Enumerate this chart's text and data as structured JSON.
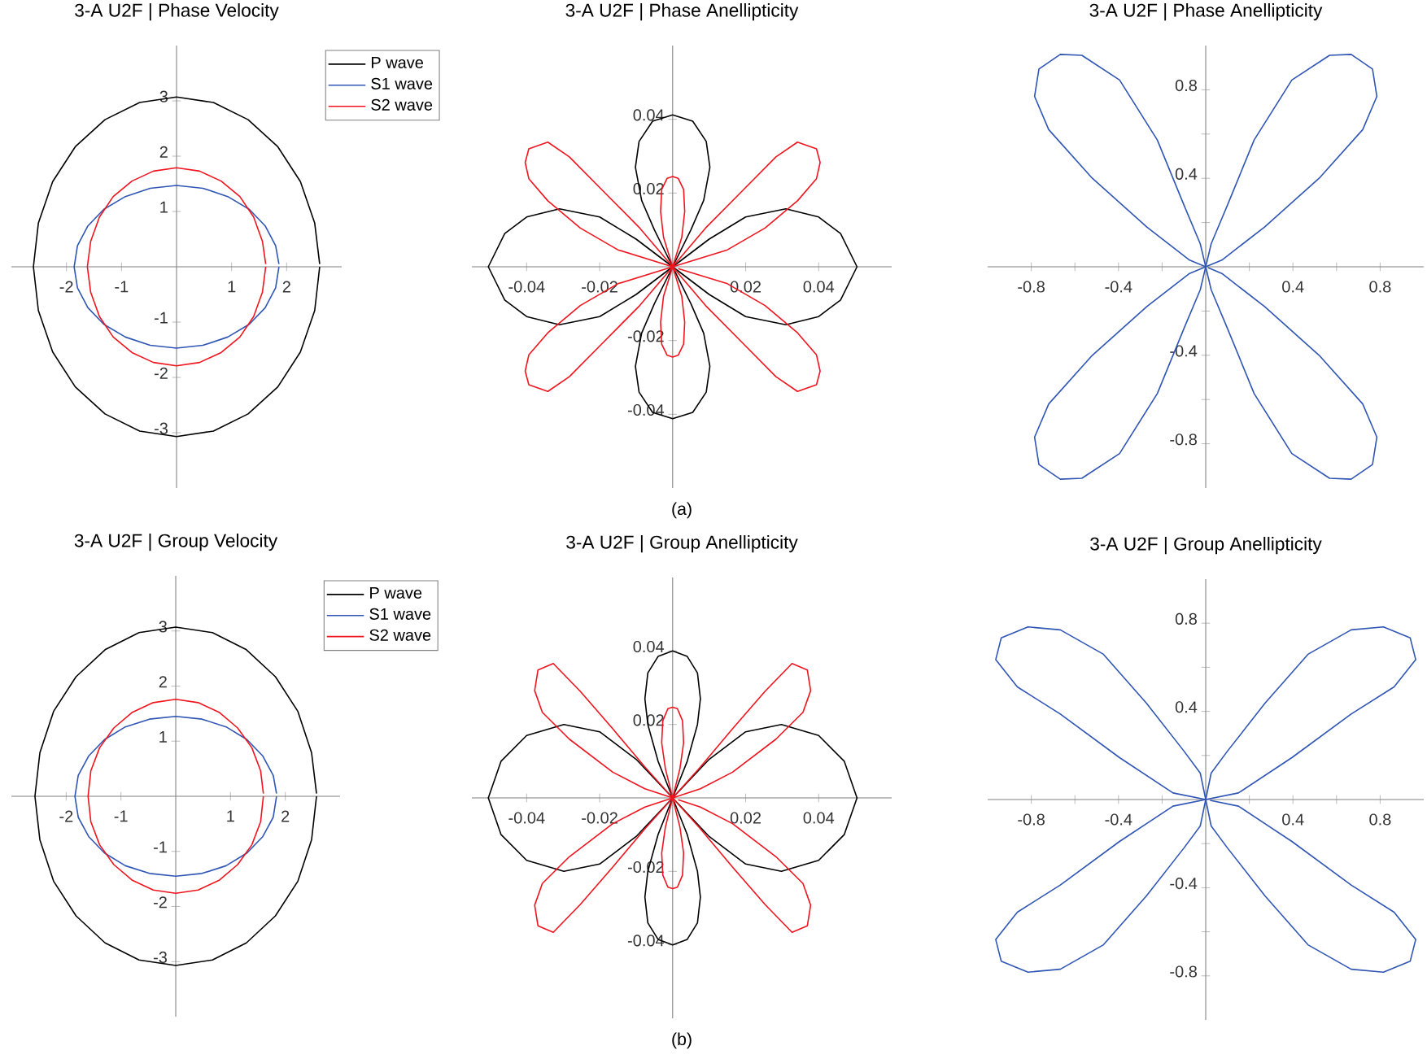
{
  "chart_data": [
    {
      "type": "line",
      "title": "3-A U2F | Phase Velocity",
      "xlim": [
        -3,
        3
      ],
      "ylim": [
        -4,
        4
      ],
      "xticks": [
        -2,
        -1,
        1,
        2
      ],
      "yticks": [
        -3,
        -2,
        -1,
        1,
        2,
        3
      ],
      "legend": "top right",
      "series": [
        {
          "name": "P wave",
          "color": "#000000",
          "x": [
            2.6,
            2.51,
            2.25,
            1.84,
            1.3,
            0.67,
            0,
            -0.67,
            -1.3,
            -1.84,
            -2.25,
            -2.51,
            -2.6,
            -2.51,
            -2.25,
            -1.84,
            -1.3,
            -0.67,
            0,
            0.67,
            1.3,
            1.84,
            2.25,
            2.51,
            2.6
          ],
          "values": [
            0.05,
            0.79,
            1.54,
            2.17,
            2.66,
            2.97,
            3.07,
            2.97,
            2.66,
            2.17,
            1.54,
            0.79,
            0,
            -0.79,
            -1.54,
            -2.17,
            -2.66,
            -2.97,
            -3.07,
            -2.97,
            -2.66,
            -2.17,
            -1.54,
            -0.79,
            0
          ]
        },
        {
          "name": "S1 wave",
          "color": "#2f55b5",
          "x": [
            1.86,
            1.8,
            1.61,
            1.32,
            0.93,
            0.48,
            0,
            -0.48,
            -0.93,
            -1.32,
            -1.61,
            -1.8,
            -1.86,
            -1.8,
            -1.61,
            -1.32,
            -0.93,
            -0.48,
            0,
            0.48,
            0.93,
            1.32,
            1.61,
            1.8,
            1.86
          ],
          "values": [
            0.05,
            0.38,
            0.74,
            1.04,
            1.27,
            1.42,
            1.47,
            1.42,
            1.27,
            1.04,
            0.74,
            0.38,
            0,
            -0.38,
            -0.74,
            -1.04,
            -1.27,
            -1.42,
            -1.47,
            -1.42,
            -1.27,
            -1.04,
            -0.74,
            -0.38,
            0
          ]
        },
        {
          "name": "S2 wave",
          "color": "#f0141e",
          "x": [
            1.62,
            1.56,
            1.4,
            1.15,
            0.81,
            0.42,
            0,
            -0.42,
            -0.81,
            -1.15,
            -1.4,
            -1.56,
            -1.62,
            -1.56,
            -1.4,
            -1.15,
            -0.81,
            -0.42,
            0,
            0.42,
            0.81,
            1.15,
            1.4,
            1.56,
            1.62
          ],
          "values": [
            0.05,
            0.46,
            0.9,
            1.27,
            1.55,
            1.73,
            1.79,
            1.73,
            1.55,
            1.27,
            0.9,
            0.46,
            0,
            -0.46,
            -0.9,
            -1.27,
            -1.55,
            -1.73,
            -1.79,
            -1.73,
            -1.55,
            -1.27,
            -0.9,
            -0.46,
            0
          ]
        }
      ]
    },
    {
      "type": "line",
      "title": "3-A U2F | Phase Anellipticity",
      "xlim": [
        -0.055,
        0.06
      ],
      "ylim": [
        -0.06,
        0.06
      ],
      "xticks": [
        -0.04,
        -0.02,
        0.02,
        0.04
      ],
      "yticks": [
        -0.04,
        -0.02,
        0.02,
        0.04
      ],
      "annotations": [
        "(a)"
      ],
      "series": [
        {
          "color": "#000000",
          "x": [
            0,
            0.01,
            0.02,
            0.031,
            0.04,
            0.046,
            0.0505,
            0.046,
            0.04,
            0.031,
            0.02,
            0.01,
            0,
            0.005,
            0.0085,
            0.0102,
            0.0092,
            0.0055,
            0,
            -0.0055,
            -0.0092,
            -0.0102,
            -0.0085,
            -0.005,
            0,
            -0.01,
            -0.02,
            -0.031,
            -0.04,
            -0.046,
            -0.0505,
            -0.046,
            -0.04,
            -0.031,
            -0.02,
            -0.01,
            0,
            -0.005,
            -0.0085,
            -0.0102,
            -0.0092,
            -0.0055,
            0,
            0.0055,
            0.0092,
            0.0102,
            0.0085,
            0.005,
            0.0005
          ],
          "values": [
            0,
            -0.0075,
            -0.0135,
            -0.0157,
            -0.0135,
            -0.009,
            0,
            0.009,
            0.0135,
            0.0157,
            0.0135,
            0.0075,
            0,
            0.01,
            0.018,
            0.027,
            0.034,
            0.0395,
            0.0412,
            0.0395,
            0.034,
            0.027,
            0.018,
            0.01,
            0,
            0.0075,
            0.0135,
            0.0157,
            0.0135,
            0.009,
            0,
            -0.009,
            -0.0135,
            -0.0157,
            -0.0135,
            -0.0075,
            0,
            -0.01,
            -0.018,
            -0.027,
            -0.034,
            -0.0395,
            -0.0412,
            -0.0395,
            -0.034,
            -0.027,
            -0.018,
            -0.01,
            -0.001
          ]
        },
        {
          "color": "#f0141e",
          "x": [
            0,
            0.015,
            0.0253,
            0.0342,
            0.0394,
            0.0404,
            0.0394,
            0.0342,
            0.0283,
            0.0194,
            0.009,
            0,
            0.0025,
            0.0033,
            0.003,
            0.0015,
            0,
            -0.0015,
            -0.003,
            -0.0033,
            -0.0025,
            0,
            -0.009,
            -0.0194,
            -0.0283,
            -0.0342,
            -0.0394,
            -0.0404,
            -0.0394,
            -0.0342,
            -0.0253,
            -0.015,
            0,
            -0.015,
            -0.0253,
            -0.0342,
            -0.0394,
            -0.0404,
            -0.0394,
            -0.0342,
            -0.0283,
            -0.0194,
            -0.009,
            0,
            -0.0025,
            -0.0033,
            -0.003,
            -0.0015,
            0,
            0.0015,
            0.003,
            0.0033,
            0.0025,
            0,
            0.009,
            0.0194,
            0.0283,
            0.0342,
            0.0394,
            0.0404,
            0.0394,
            0.0342,
            0.0253,
            0.015,
            0.0015
          ],
          "values": [
            0,
            0.0046,
            0.0105,
            0.0179,
            0.0239,
            0.0283,
            0.032,
            0.0338,
            0.0298,
            0.0209,
            0.0105,
            0,
            0.008,
            0.015,
            0.021,
            0.024,
            0.0245,
            0.024,
            0.021,
            0.015,
            0.008,
            0,
            0.0105,
            0.0209,
            0.0298,
            0.0338,
            0.032,
            0.0283,
            0.0239,
            0.0179,
            0.0105,
            0.0046,
            0,
            -0.0046,
            -0.0105,
            -0.0179,
            -0.0239,
            -0.0283,
            -0.032,
            -0.0338,
            -0.0298,
            -0.0209,
            -0.0105,
            0,
            -0.008,
            -0.015,
            -0.021,
            -0.024,
            -0.0245,
            -0.024,
            -0.021,
            -0.015,
            -0.008,
            0,
            -0.0105,
            -0.0209,
            -0.0298,
            -0.0338,
            -0.032,
            -0.0283,
            -0.0239,
            -0.0179,
            -0.0105,
            -0.0046,
            -0.0005
          ]
        }
      ]
    },
    {
      "type": "line",
      "title": "3-A U2F | Phase Anellipticity",
      "xlim": [
        -1,
        1
      ],
      "ylim": [
        -1,
        1
      ],
      "xticks": [
        -0.8,
        {
          "value": -0.6,
          "label": null
        },
        -0.4,
        {
          "value": -0.2,
          "label": null
        },
        {
          "value": 0.2,
          "label": null
        },
        0.4,
        {
          "value": 0.6,
          "label": null
        },
        0.8
      ],
      "yticks": [
        -0.8,
        {
          "value": -0.6,
          "label": null
        },
        -0.4,
        {
          "value": -0.2,
          "label": null
        },
        {
          "value": 0.2,
          "label": null
        },
        0.4,
        {
          "value": 0.6,
          "label": null
        },
        0.8
      ],
      "series": [
        {
          "color": "#2f55b5",
          "x": [
            0,
            0.074,
            0.27,
            0.52,
            0.72,
            0.785,
            0.765,
            0.667,
            0.568,
            0.395,
            0.222,
            0.099,
            0.025,
            0,
            -0.025,
            -0.099,
            -0.222,
            -0.395,
            -0.568,
            -0.667,
            -0.765,
            -0.785,
            -0.72,
            -0.52,
            -0.27,
            -0.074,
            0,
            -0.074,
            -0.27,
            -0.52,
            -0.72,
            -0.785,
            -0.765,
            -0.667,
            -0.568,
            -0.395,
            -0.222,
            -0.099,
            -0.025,
            0,
            0.025,
            0.099,
            0.222,
            0.395,
            0.568,
            0.667,
            0.765,
            0.785,
            0.72,
            0.52,
            0.27,
            0.074,
            0.01
          ],
          "values": [
            0,
            0.03,
            0.18,
            0.4,
            0.62,
            0.77,
            0.894,
            0.96,
            0.956,
            0.844,
            0.573,
            0.277,
            0.104,
            0,
            0.104,
            0.277,
            0.573,
            0.844,
            0.956,
            0.96,
            0.894,
            0.77,
            0.62,
            0.4,
            0.18,
            0.03,
            0,
            -0.03,
            -0.18,
            -0.4,
            -0.62,
            -0.77,
            -0.894,
            -0.96,
            -0.956,
            -0.844,
            -0.573,
            -0.277,
            -0.104,
            0,
            -0.104,
            -0.277,
            -0.573,
            -0.844,
            -0.956,
            -0.96,
            -0.894,
            -0.77,
            -0.62,
            -0.4,
            -0.18,
            -0.03,
            -0.004
          ]
        }
      ]
    },
    {
      "type": "line",
      "title": "3-A U2F | Group Velocity",
      "xlim": [
        -3,
        3
      ],
      "ylim": [
        -4,
        4
      ],
      "xticks": [
        -2,
        -1,
        1,
        2
      ],
      "yticks": [
        -3,
        -2,
        -1,
        1,
        2,
        3
      ],
      "legend": "top right",
      "series": [
        {
          "name": "P wave",
          "color": "#000000",
          "x": [
            2.57,
            2.48,
            2.23,
            1.82,
            1.29,
            0.67,
            0,
            -0.67,
            -1.29,
            -1.82,
            -2.23,
            -2.48,
            -2.57,
            -2.48,
            -2.23,
            -1.82,
            -1.29,
            -0.67,
            0,
            0.67,
            1.29,
            1.82,
            2.23,
            2.48,
            2.57
          ],
          "values": [
            0.05,
            0.79,
            1.54,
            2.17,
            2.66,
            2.97,
            3.07,
            2.97,
            2.66,
            2.17,
            1.54,
            0.79,
            0,
            -0.79,
            -1.54,
            -2.17,
            -2.66,
            -2.97,
            -3.07,
            -2.97,
            -2.66,
            -2.17,
            -1.54,
            -0.79,
            0
          ]
        },
        {
          "name": "S1 wave",
          "color": "#2f55b5",
          "x": [
            1.84,
            1.78,
            1.59,
            1.3,
            0.92,
            0.48,
            0,
            -0.48,
            -0.92,
            -1.3,
            -1.59,
            -1.78,
            -1.84,
            -1.78,
            -1.59,
            -1.3,
            -0.92,
            -0.48,
            0,
            0.48,
            0.92,
            1.3,
            1.59,
            1.78,
            1.84
          ],
          "values": [
            0.05,
            0.38,
            0.73,
            1.03,
            1.26,
            1.4,
            1.45,
            1.4,
            1.26,
            1.03,
            0.73,
            0.38,
            0,
            -0.38,
            -0.73,
            -1.03,
            -1.26,
            -1.4,
            -1.45,
            -1.4,
            -1.26,
            -1.03,
            -0.73,
            -0.38,
            0
          ]
        },
        {
          "name": "S2 wave",
          "color": "#f0141e",
          "x": [
            1.6,
            1.55,
            1.39,
            1.13,
            0.8,
            0.41,
            0,
            -0.41,
            -0.8,
            -1.13,
            -1.39,
            -1.55,
            -1.6,
            -1.55,
            -1.39,
            -1.13,
            -0.8,
            -0.41,
            0,
            0.41,
            0.8,
            1.13,
            1.39,
            1.55,
            1.6
          ],
          "values": [
            0.05,
            0.46,
            0.88,
            1.24,
            1.52,
            1.7,
            1.76,
            1.7,
            1.52,
            1.24,
            0.88,
            0.46,
            0,
            -0.46,
            -0.88,
            -1.24,
            -1.52,
            -1.7,
            -1.76,
            -1.7,
            -1.52,
            -1.24,
            -0.88,
            -0.46,
            0
          ]
        }
      ]
    },
    {
      "type": "line",
      "title": "3-A U2F | Group Anellipticity",
      "xlim": [
        -0.055,
        0.06
      ],
      "ylim": [
        -0.06,
        0.06
      ],
      "xticks": [
        -0.04,
        -0.02,
        0.02,
        0.04
      ],
      "yticks": [
        -0.04,
        -0.02,
        0.02,
        0.04
      ],
      "annotations": [
        "(b)"
      ],
      "series": [
        {
          "color": "#000000",
          "x": [
            0,
            0.01,
            0.02,
            0.0298,
            0.04,
            0.047,
            0.0505,
            0.047,
            0.04,
            0.0298,
            0.02,
            0.01,
            0,
            0.004,
            0.0068,
            0.0076,
            0.0068,
            0.004,
            0,
            -0.004,
            -0.0068,
            -0.0076,
            -0.0068,
            -0.004,
            0,
            -0.01,
            -0.02,
            -0.0298,
            -0.04,
            -0.047,
            -0.0505,
            -0.047,
            -0.04,
            -0.0298,
            -0.02,
            -0.01,
            0,
            -0.004,
            -0.0068,
            -0.0076,
            -0.0068,
            -0.004,
            0,
            0.004,
            0.0068,
            0.0076,
            0.0068,
            0.004,
            0.0004
          ],
          "values": [
            0,
            -0.0105,
            -0.018,
            -0.02,
            -0.017,
            -0.01,
            0,
            0.01,
            0.017,
            0.02,
            0.018,
            0.0105,
            0,
            0.01,
            0.02,
            0.027,
            0.034,
            0.0385,
            0.04,
            0.0385,
            0.034,
            0.027,
            0.02,
            0.01,
            0,
            0.0105,
            0.018,
            0.02,
            0.017,
            0.01,
            0,
            -0.01,
            -0.017,
            -0.02,
            -0.018,
            -0.0105,
            0,
            -0.01,
            -0.02,
            -0.027,
            -0.034,
            -0.0385,
            -0.04,
            -0.0385,
            -0.034,
            -0.027,
            -0.02,
            -0.01,
            -0.001
          ]
        },
        {
          "color": "#f0141e",
          "x": [
            0,
            0.0076,
            0.0164,
            0.0283,
            0.0357,
            0.0378,
            0.0369,
            0.0327,
            0.0253,
            0.0164,
            0.0076,
            0,
            0.002,
            0.003,
            0.0027,
            0.0013,
            0,
            -0.0013,
            -0.0027,
            -0.003,
            -0.002,
            0,
            -0.0076,
            -0.0164,
            -0.0253,
            -0.0327,
            -0.0369,
            -0.0378,
            -0.0357,
            -0.0283,
            -0.0164,
            -0.0076,
            0,
            -0.0076,
            -0.0164,
            -0.0283,
            -0.0357,
            -0.0378,
            -0.0369,
            -0.0327,
            -0.0253,
            -0.0164,
            -0.0076,
            0,
            -0.002,
            -0.003,
            -0.0027,
            -0.0013,
            0,
            0.0013,
            0.0027,
            0.003,
            0.002,
            0,
            0.0076,
            0.0164,
            0.0253,
            0.0327,
            0.0369,
            0.0378,
            0.0357,
            0.0283,
            0.0164,
            0.0076,
            0.0015
          ],
          "values": [
            0,
            0.0025,
            0.007,
            0.016,
            0.0233,
            0.0292,
            0.0348,
            0.0366,
            0.029,
            0.0188,
            0.0084,
            0,
            0.008,
            0.015,
            0.021,
            0.0243,
            0.0247,
            0.0243,
            0.021,
            0.015,
            0.008,
            0,
            0.0084,
            0.0188,
            0.029,
            0.0366,
            0.0348,
            0.0292,
            0.0233,
            0.016,
            0.007,
            0.0025,
            0,
            -0.0025,
            -0.007,
            -0.016,
            -0.0233,
            -0.0292,
            -0.0348,
            -0.0366,
            -0.029,
            -0.0188,
            -0.0084,
            0,
            -0.008,
            -0.015,
            -0.021,
            -0.0243,
            -0.0247,
            -0.0243,
            -0.021,
            -0.015,
            -0.008,
            0,
            -0.0084,
            -0.0188,
            -0.029,
            -0.0366,
            -0.0348,
            -0.0292,
            -0.0233,
            -0.016,
            -0.007,
            -0.0025,
            -0.0005
          ]
        }
      ]
    },
    {
      "type": "line",
      "title": "3-A U2F | Group Anellipticity",
      "xlim": [
        -1,
        1
      ],
      "ylim": [
        -1,
        1
      ],
      "xticks": [
        -0.8,
        {
          "value": -0.6,
          "label": null
        },
        -0.4,
        {
          "value": -0.2,
          "label": null
        },
        {
          "value": 0.2,
          "label": null
        },
        0.4,
        {
          "value": 0.6,
          "label": null
        },
        0.8
      ],
      "yticks": [
        -0.8,
        {
          "value": -0.6,
          "label": null
        },
        -0.4,
        {
          "value": -0.2,
          "label": null
        },
        {
          "value": 0.2,
          "label": null
        },
        0.4,
        {
          "value": 0.6,
          "label": null
        },
        0.8
      ],
      "series": [
        {
          "color": "#2f55b5",
          "x": [
            0,
            0.15,
            0.395,
            0.667,
            0.864,
            0.963,
            0.938,
            0.815,
            0.667,
            0.469,
            0.272,
            0.1,
            0.025,
            0,
            -0.025,
            -0.1,
            -0.272,
            -0.469,
            -0.667,
            -0.815,
            -0.938,
            -0.963,
            -0.864,
            -0.667,
            -0.395,
            -0.15,
            0,
            -0.15,
            -0.395,
            -0.667,
            -0.864,
            -0.963,
            -0.938,
            -0.815,
            -0.667,
            -0.469,
            -0.272,
            -0.1,
            -0.025,
            0,
            0.025,
            0.1,
            0.272,
            0.469,
            0.667,
            0.815,
            0.938,
            0.963,
            0.864,
            0.667,
            0.395,
            0.15,
            0.02
          ],
          "values": [
            0,
            0.03,
            0.19,
            0.388,
            0.511,
            0.635,
            0.733,
            0.783,
            0.77,
            0.659,
            0.437,
            0.22,
            0.12,
            0,
            0.12,
            0.22,
            0.437,
            0.659,
            0.77,
            0.783,
            0.733,
            0.635,
            0.511,
            0.388,
            0.19,
            0.03,
            0,
            -0.03,
            -0.19,
            -0.388,
            -0.511,
            -0.635,
            -0.733,
            -0.783,
            -0.77,
            -0.659,
            -0.437,
            -0.22,
            -0.12,
            0,
            -0.12,
            -0.22,
            -0.437,
            -0.659,
            -0.77,
            -0.783,
            -0.733,
            -0.635,
            -0.511,
            -0.388,
            -0.19,
            -0.03,
            -0.004
          ]
        }
      ]
    }
  ]
}
